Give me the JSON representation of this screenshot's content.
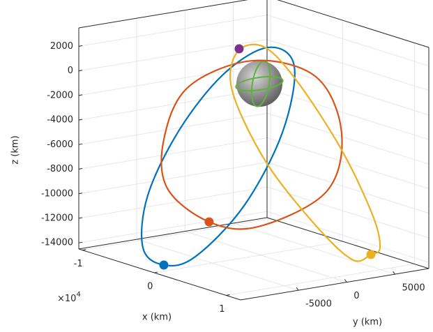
{
  "chart_data": {
    "type": "line3d",
    "xlabel": "x (km)",
    "ylabel": "y (km)",
    "zlabel": "z (km)",
    "xlim": [
      -10500,
      12000
    ],
    "ylim": [
      -11000,
      8500
    ],
    "zlim": [
      -14500,
      3500
    ],
    "xticks": [
      {
        "value": -10000,
        "label": "-1"
      },
      0,
      {
        "value": 10000,
        "label": "1"
      }
    ],
    "xtick_multiplier": {
      "base": "×10",
      "exponent": "4"
    },
    "yticks": [
      -5000,
      0,
      5000
    ],
    "zticks": [
      2000,
      0,
      -2000,
      -4000,
      -6000,
      -8000,
      -10000,
      -12000,
      -14000
    ],
    "grid": true,
    "series": [
      {
        "color": "#0072bd",
        "x": [
          0,
          0,
          0,
          0,
          0,
          0,
          0,
          0,
          0,
          0
        ],
        "y": [
          -10010,
          -12180,
          -11670,
          -8350,
          -3730,
          820,
          3500,
          2270,
          -1700,
          -6760
        ],
        "z": [
          -14000,
          -12300,
          -8100,
          -3150,
          790,
          2300,
          410,
          -4820,
          -10260,
          -13750
        ]
      },
      {
        "color": "#d95319",
        "x": [
          0,
          0,
          0,
          0,
          0,
          0,
          0,
          0,
          0
        ],
        "y": [
          -5320,
          -9650,
          -10010,
          -7490,
          -840,
          5730,
          8400,
          6820,
          -260
        ],
        "z": [
          -11100,
          -7800,
          -3780,
          150,
          1430,
          -730,
          -5630,
          -10240,
          -12160
        ]
      },
      {
        "color": "#edb120",
        "x": [
          8000,
          8000,
          8000,
          4000,
          0,
          0,
          0,
          0,
          4000,
          8000,
          8000
        ],
        "y": [
          5480,
          3530,
          -440,
          -2510,
          -2930,
          -2430,
          320,
          3710,
          5430,
          5700,
          6420
        ],
        "z": [
          -13700,
          -13850,
          -10380,
          -5730,
          -730,
          2320,
          2420,
          -750,
          -5920,
          -10610,
          -13260
        ]
      },
      {
        "color": "#7e2f8e",
        "x": [
          0
        ],
        "y": [
          -2210
        ],
        "z": [
          2580
        ]
      }
    ]
  }
}
